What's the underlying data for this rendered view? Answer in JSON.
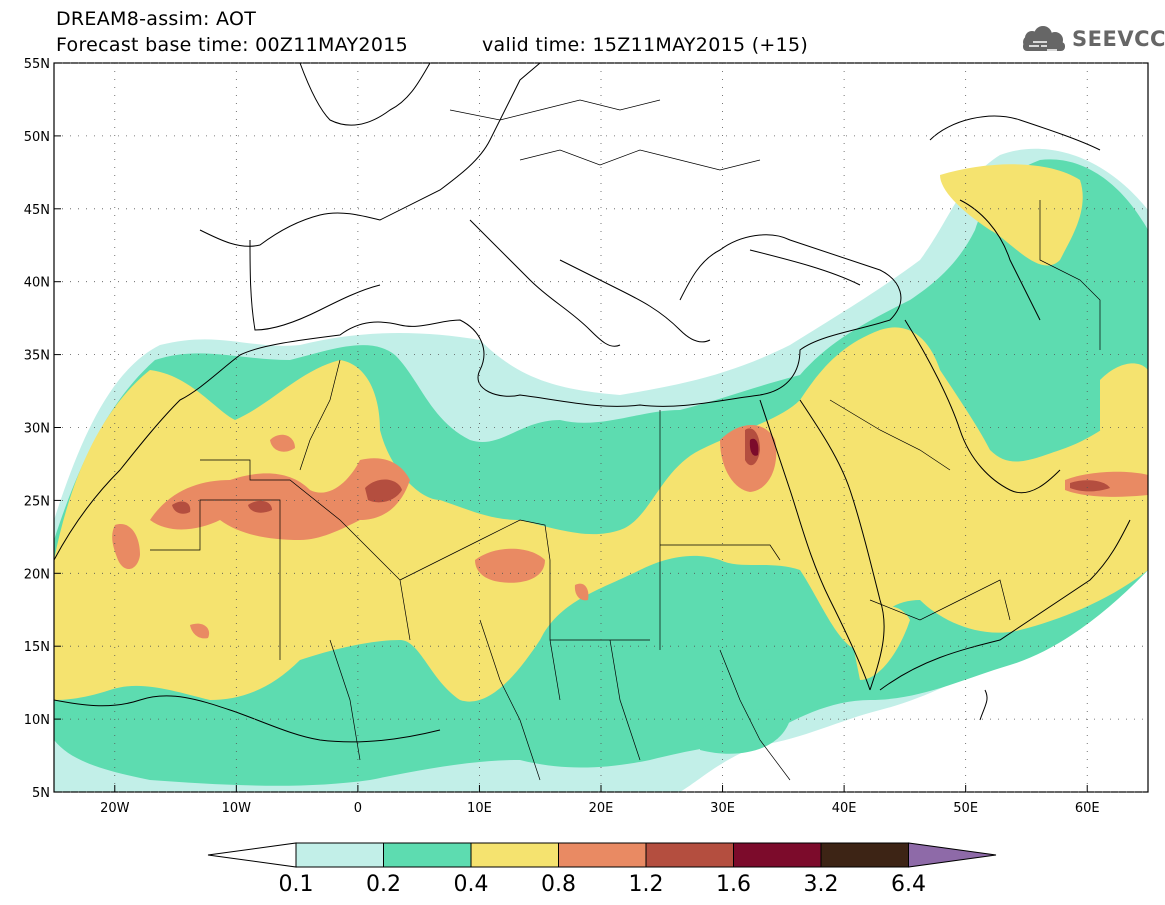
{
  "header": {
    "line1": "DREAM8-assim: AOT",
    "line2": "Forecast base time: 00Z11MAY2015",
    "valid": "valid time: 15Z11MAY2015 (+15)",
    "logo_text": "SEEVCCC",
    "logo_icon": "cloud-icon"
  },
  "map": {
    "lon_range": [
      -25,
      65
    ],
    "lat_range": [
      5,
      55
    ],
    "lat_labels": [
      "55N",
      "50N",
      "45N",
      "40N",
      "35N",
      "30N",
      "25N",
      "20N",
      "15N",
      "10N",
      "5N"
    ],
    "lon_labels": [
      "20W",
      "10W",
      "0",
      "10E",
      "20E",
      "30E",
      "40E",
      "50E",
      "60E"
    ]
  },
  "colorbar": {
    "levels": [
      "0.1",
      "0.2",
      "0.4",
      "0.8",
      "1.2",
      "1.6",
      "3.2",
      "6.4"
    ],
    "colors": [
      "#ffffff",
      "#c2efe8",
      "#5ddcb0",
      "#f5e36f",
      "#e98a63",
      "#b44e3f",
      "#7c0b2b",
      "#3d2415",
      "#8e6aa8"
    ]
  }
}
